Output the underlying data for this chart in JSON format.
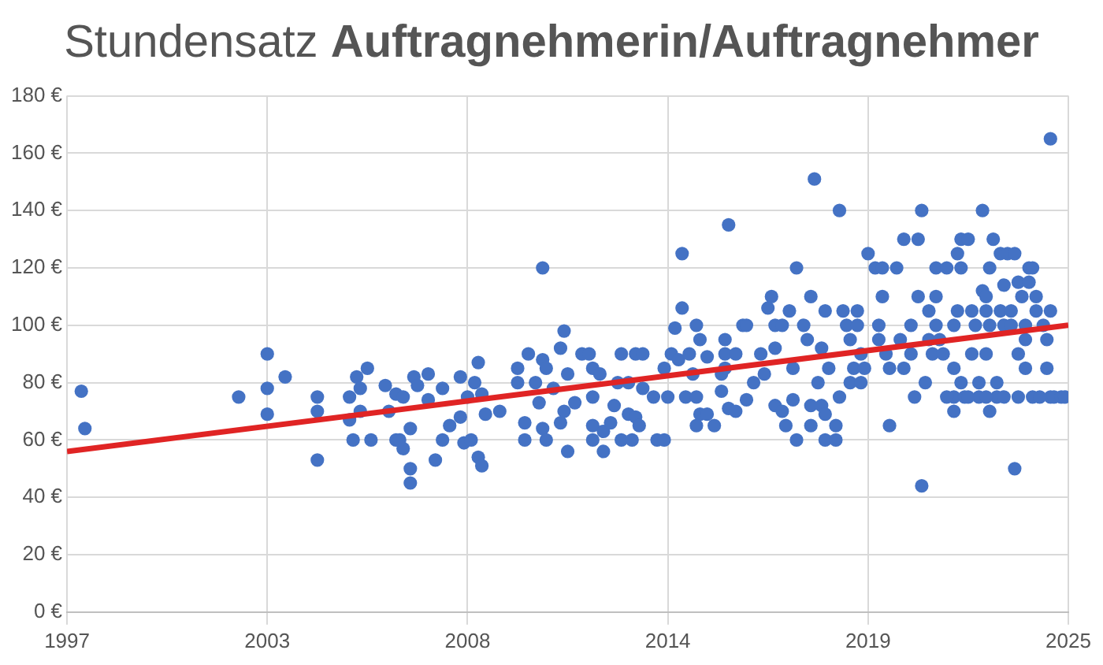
{
  "chart_data": {
    "type": "scatter",
    "title": "Stundensatz Auftragnehmerin/Auftragnehmer",
    "xlim": [
      1997.0,
      2025.0
    ],
    "xticks": [
      {
        "value": 1997.0,
        "label": "1997"
      },
      {
        "value": 2002.6,
        "label": "2003"
      },
      {
        "value": 2008.2,
        "label": "2008"
      },
      {
        "value": 2013.8,
        "label": "2014"
      },
      {
        "value": 2019.4,
        "label": "2019"
      },
      {
        "value": 2025.0,
        "label": "2025"
      }
    ],
    "ylim": [
      0,
      180
    ],
    "yticks": [
      {
        "value": 0,
        "label": "0 €"
      },
      {
        "value": 20,
        "label": "20 €"
      },
      {
        "value": 40,
        "label": "40 €"
      },
      {
        "value": 60,
        "label": "60 €"
      },
      {
        "value": 80,
        "label": "80 €"
      },
      {
        "value": 100,
        "label": "100 €"
      },
      {
        "value": 120,
        "label": "120 €"
      },
      {
        "value": 140,
        "label": "140 €"
      },
      {
        "value": 160,
        "label": "160 €"
      },
      {
        "value": 180,
        "label": "180 €"
      }
    ],
    "grid": true,
    "series": [
      {
        "marker": "circle",
        "color": "#4472c4",
        "x": [
          1997.4,
          1997.5,
          2001.8,
          2002.6,
          2002.6,
          2002.6,
          2003.1,
          2004.0,
          2004.0,
          2004.0,
          2004.9,
          2004.9,
          2005.0,
          2005.1,
          2005.4,
          2005.2,
          2005.2,
          2005.5,
          2005.9,
          2006.0,
          2006.2,
          2006.4,
          2006.2,
          2006.4,
          2006.6,
          2006.6,
          2006.6,
          2006.7,
          2006.3,
          2006.8,
          2007.1,
          2007.1,
          2007.3,
          2007.5,
          2007.5,
          2007.7,
          2008.0,
          2008.0,
          2008.1,
          2008.2,
          2008.3,
          2008.4,
          2008.5,
          2008.5,
          2008.6,
          2008.6,
          2008.7,
          2009.1,
          2009.6,
          2009.6,
          2009.8,
          2009.8,
          2009.9,
          2010.1,
          2010.3,
          2010.2,
          2010.3,
          2010.4,
          2010.3,
          2010.4,
          2010.6,
          2010.8,
          2010.9,
          2010.8,
          2010.9,
          2011.0,
          2011.0,
          2011.2,
          2011.4,
          2011.6,
          2011.7,
          2011.7,
          2011.7,
          2011.7,
          2011.9,
          2012.0,
          2012.0,
          2012.2,
          2012.3,
          2012.4,
          2012.5,
          2012.5,
          2012.7,
          2012.7,
          2012.8,
          2012.9,
          2012.9,
          2013.1,
          2013.0,
          2013.1,
          2013.4,
          2013.5,
          2013.7,
          2013.7,
          2013.9,
          2014.0,
          2014.2,
          2014.2,
          2013.8,
          2014.1,
          2014.3,
          2014.4,
          2014.5,
          2014.6,
          2014.6,
          2014.7,
          2014.7,
          2014.9,
          2014.9,
          2014.6,
          2015.1,
          2015.3,
          2015.3,
          2015.5,
          2015.5,
          2015.4,
          2015.4,
          2015.4,
          2015.7,
          2015.9,
          2016.0,
          2015.7,
          2016.0,
          2016.2,
          2016.4,
          2016.5,
          2016.6,
          2016.7,
          2016.8,
          2016.8,
          2016.8,
          2017.0,
          2017.0,
          2017.1,
          2017.2,
          2017.3,
          2017.3,
          2017.4,
          2017.4,
          2017.6,
          2017.7,
          2017.8,
          2017.8,
          2017.8,
          2017.9,
          2018.0,
          2018.1,
          2018.1,
          2018.2,
          2018.2,
          2018.3,
          2018.2,
          2018.5,
          2018.5,
          2018.6,
          2018.6,
          2018.7,
          2018.8,
          2018.9,
          2018.9,
          2019.0,
          2019.1,
          2019.1,
          2019.2,
          2019.2,
          2019.3,
          2019.4,
          2019.6,
          2019.8,
          2019.8,
          2019.7,
          2019.7,
          2019.9,
          2020.0,
          2020.0,
          2020.2,
          2020.3,
          2020.4,
          2020.4,
          2020.6,
          2020.6,
          2020.7,
          2020.8,
          2020.8,
          2020.9,
          2020.9,
          2021.0,
          2021.1,
          2021.1,
          2021.2,
          2021.3,
          2021.3,
          2021.3,
          2021.4,
          2021.6,
          2021.5,
          2021.8,
          2021.8,
          2021.8,
          2021.8,
          2021.9,
          2021.9,
          2022.0,
          2022.0,
          2022.0,
          2022.2,
          2022.1,
          2022.3,
          2022.3,
          2022.4,
          2022.5,
          2022.5,
          2022.6,
          2022.6,
          2022.7,
          2022.7,
          2022.7,
          2022.8,
          2022.8,
          2022.8,
          2022.9,
          2023.0,
          2023.0,
          2023.1,
          2023.1,
          2023.2,
          2023.2,
          2023.3,
          2023.4,
          2023.4,
          2023.5,
          2023.5,
          2023.6,
          2023.6,
          2023.7,
          2023.8,
          2023.8,
          2023.8,
          2023.9,
          2023.9,
          2024.0,
          2024.0,
          2024.1,
          2024.1,
          2024.3,
          2024.4,
          2024.4,
          2024.5,
          2024.5,
          2024.5,
          2024.6,
          2024.8,
          2024.9,
          2021.6,
          2022.2,
          2022.7,
          2023.2,
          2023.6,
          2024.2
        ],
        "values": [
          77,
          64,
          75,
          90,
          78,
          69,
          82,
          75,
          70,
          53,
          75,
          67,
          60,
          82,
          85,
          78,
          70,
          60,
          79,
          70,
          76,
          75,
          60,
          57,
          50,
          45,
          64,
          82,
          60,
          79,
          83,
          74,
          53,
          78,
          60,
          65,
          82,
          68,
          59,
          75,
          60,
          80,
          87,
          54,
          51,
          76,
          69,
          70,
          85,
          80,
          66,
          60,
          90,
          80,
          120,
          73,
          88,
          85,
          64,
          60,
          78,
          92,
          98,
          66,
          70,
          83,
          56,
          73,
          90,
          90,
          75,
          65,
          60,
          85,
          83,
          63,
          56,
          66,
          72,
          80,
          90,
          60,
          80,
          69,
          60,
          90,
          68,
          90,
          65,
          78,
          75,
          60,
          60,
          85,
          90,
          99,
          106,
          125,
          75,
          88,
          75,
          90,
          83,
          100,
          75,
          95,
          69,
          69,
          89,
          65,
          65,
          83,
          77,
          135,
          71,
          95,
          90,
          85,
          90,
          100,
          74,
          70,
          100,
          80,
          90,
          83,
          106,
          110,
          100,
          72,
          92,
          100,
          70,
          65,
          105,
          85,
          74,
          120,
          60,
          100,
          95,
          110,
          65,
          72,
          151,
          80,
          92,
          72,
          105,
          69,
          85,
          60,
          65,
          60,
          140,
          75,
          105,
          100,
          95,
          80,
          85,
          105,
          100,
          90,
          80,
          85,
          125,
          120,
          120,
          110,
          100,
          95,
          90,
          85,
          65,
          120,
          95,
          130,
          85,
          100,
          90,
          75,
          130,
          110,
          44,
          140,
          80,
          95,
          105,
          90,
          100,
          120,
          110,
          95,
          120,
          90,
          75,
          70,
          85,
          100,
          125,
          105,
          130,
          80,
          120,
          130,
          75,
          105,
          90,
          100,
          80,
          75,
          140,
          112,
          110,
          105,
          90,
          120,
          100,
          70,
          130,
          80,
          75,
          105,
          125,
          100,
          114,
          125,
          105,
          100,
          125,
          50,
          115,
          90,
          110,
          95,
          100,
          85,
          120,
          115,
          120,
          75,
          110,
          105,
          100,
          85,
          95,
          105,
          165,
          75,
          75,
          75,
          75,
          75,
          75,
          75,
          75,
          75,
          75
        ]
      },
      {
        "type": "line",
        "color": "#e02424",
        "x": [
          1997.0,
          2025.0
        ],
        "values": [
          56,
          100
        ]
      }
    ]
  }
}
